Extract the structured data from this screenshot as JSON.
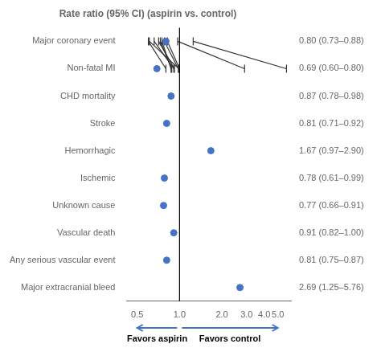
{
  "chart_data": {
    "type": "forest",
    "title": "Rate ratio (95% CI) (aspirin vs. control)",
    "categories": [
      "Major coronary event",
      "    Non-fatal MI",
      "    CHD mortality",
      "Stroke",
      "    Hemorrhagic",
      "    Ischemic",
      "    Unknown cause",
      "Vascular death",
      "Any serious vascular event",
      "Major extracranial bleed"
    ],
    "values": [
      0.8,
      0.69,
      0.87,
      0.81,
      1.67,
      0.78,
      0.77,
      0.91,
      0.81,
      2.69
    ],
    "ci_lower": [
      0.73,
      0.6,
      0.78,
      0.71,
      0.97,
      0.61,
      0.66,
      0.82,
      0.75,
      1.25
    ],
    "ci_upper": [
      0.88,
      0.8,
      0.98,
      0.92,
      2.9,
      0.99,
      0.91,
      1.0,
      0.87,
      5.76
    ],
    "value_labels": [
      "0.80 (0.73–0.88)",
      "0.69 (0.60–0.80)",
      "0.87 (0.78–0.98)",
      "0.81 (0.71–0.92)",
      "1.67 (0.97–2.90)",
      "0.78 (0.61–0.99)",
      "0.77 (0.66–0.91)",
      "0.91 (0.82–1.00)",
      "0.81 (0.75–0.87)",
      "2.69 (1.25–5.76)"
    ],
    "data_labels": true,
    "reference_line": 1.0,
    "annotations": [
      {
        "text": "Favors aspirin",
        "from": 1.0,
        "to": 0.5
      },
      {
        "text": "Favors control",
        "from": 1.0,
        "to": 5.0
      }
    ],
    "log": "x",
    "xlim": [
      0.42,
      6.2
    ],
    "xticks": [
      0.5,
      {
        "value": 1.0,
        "label": "1.0"
      },
      {
        "value": 2.0,
        "label": "2.0"
      },
      {
        "value": 3.0,
        "label": "3.0"
      },
      {
        "value": 4.0,
        "label": "4.0"
      },
      {
        "value": 5.0,
        "label": "5.0"
      }
    ],
    "color": "#4472C4",
    "grid": false
  }
}
